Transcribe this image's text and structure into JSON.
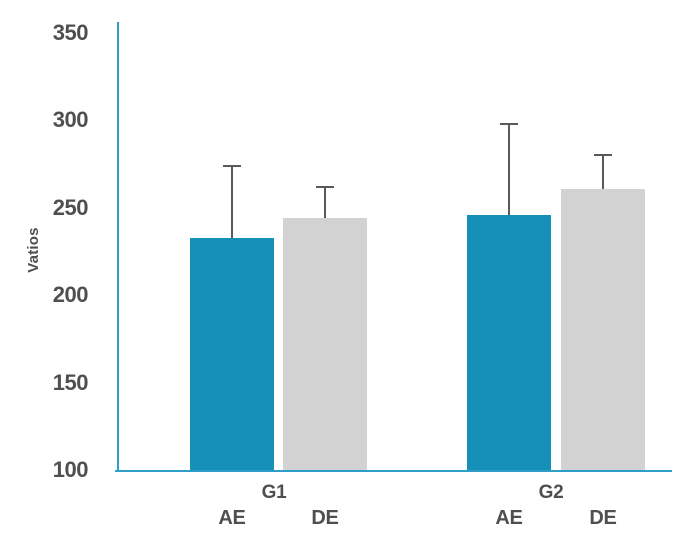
{
  "chart_data": {
    "type": "bar",
    "title": "",
    "xlabel": "",
    "ylabel": "Vatios",
    "ylim": [
      100,
      350
    ],
    "yticks": [
      350,
      300,
      250,
      200,
      150,
      100
    ],
    "grid": false,
    "legend_position": "none",
    "categories": [
      "G1",
      "G2"
    ],
    "series": [
      {
        "name": "AE",
        "color": "#1790b9",
        "values": [
          233,
          246
        ],
        "errors_upper": [
          41,
          52
        ]
      },
      {
        "name": "DE",
        "color": "#d2d2d2",
        "values": [
          244,
          261
        ],
        "errors_upper": [
          18,
          19
        ]
      }
    ],
    "colors": {
      "axis": "#2e9ec6",
      "error_bar": "#58595b",
      "text": "#4f4f4f",
      "background": "#ffffff"
    }
  }
}
